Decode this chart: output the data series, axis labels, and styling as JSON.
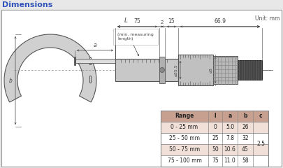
{
  "title": "Dimensions",
  "unit_text": "Unit: mm",
  "bg_color": "#e8e8e8",
  "frame_color": "#ffffff",
  "title_color": "#3355bb",
  "table": {
    "headers": [
      "Range",
      "l",
      "a",
      "b",
      "c"
    ],
    "rows": [
      [
        "0 - 25 mm",
        "0",
        "5.0",
        "26",
        ""
      ],
      [
        "25 - 50 mm",
        "25",
        "7.8",
        "32",
        "2.5"
      ],
      [
        "50 - 75 mm",
        "50",
        "10.6",
        "45",
        ""
      ],
      [
        "75 - 100 mm",
        "75",
        "11.0",
        "58",
        ""
      ]
    ],
    "header_bg": "#c8a090",
    "row_bg_alt": "#f0e0d8",
    "row_bg_norm": "#ffffff",
    "border_color": "#888888"
  },
  "dim_color": "#444444",
  "line_color": "#555555",
  "body_color": "#cccccc",
  "body_dark": "#aaaaaa",
  "body_light": "#dddddd"
}
